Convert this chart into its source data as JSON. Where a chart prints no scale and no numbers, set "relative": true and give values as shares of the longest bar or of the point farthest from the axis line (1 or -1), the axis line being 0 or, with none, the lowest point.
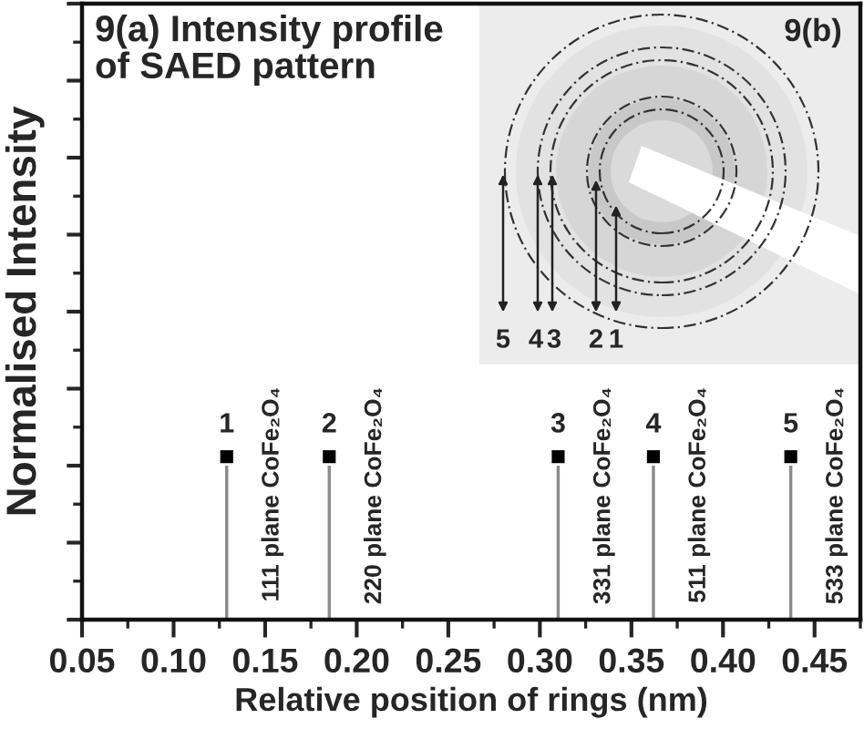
{
  "chart_data": {
    "type": "bar",
    "title": "9(a) Intensity profile\nof SAED pattern",
    "xlabel": "Relative position of rings (nm)",
    "ylabel": "Normalised Intensity",
    "relative": true,
    "marker": "square",
    "tick_labels": "x",
    "xlim": [
      0.05,
      0.475
    ],
    "xticks": [
      0.05,
      {
        "value": 0.1,
        "label": "0.10"
      },
      0.15,
      {
        "value": 0.2,
        "label": "0.20"
      },
      0.25,
      {
        "value": 0.3,
        "label": "0.30"
      },
      0.35,
      {
        "value": 0.4,
        "label": "0.40"
      },
      0.45
    ],
    "x": [
      0.129,
      0.185,
      0.31,
      0.362,
      0.437
    ],
    "series": [
      {
        "color": "#8a8a8a",
        "values": [
          1,
          1,
          1,
          1,
          1
        ]
      }
    ],
    "annotations": [
      {
        "text": "1",
        "x": 0.129,
        "y": 1
      },
      {
        "text": "111 plane CoFe₂O₄",
        "x": 0.129,
        "y": 1
      },
      {
        "text": "2",
        "x": 0.185,
        "y": 1
      },
      {
        "text": "220 plane CoFe₂O₄",
        "x": 0.185,
        "y": 1
      },
      {
        "text": "3",
        "x": 0.31,
        "y": 1
      },
      {
        "text": "331 plane CoFe₂O₄",
        "x": 0.31,
        "y": 1
      },
      {
        "text": "4",
        "x": 0.362,
        "y": 1
      },
      {
        "text": "511 plane CoFe₂O₄",
        "x": 0.362,
        "y": 1
      },
      {
        "text": "5",
        "x": 0.437,
        "y": 1
      },
      {
        "text": "533 plane CoFe₂O₄",
        "x": 0.437,
        "y": 1
      },
      "9(b)",
      "5",
      "4",
      "3",
      "2",
      "1"
    ]
  }
}
